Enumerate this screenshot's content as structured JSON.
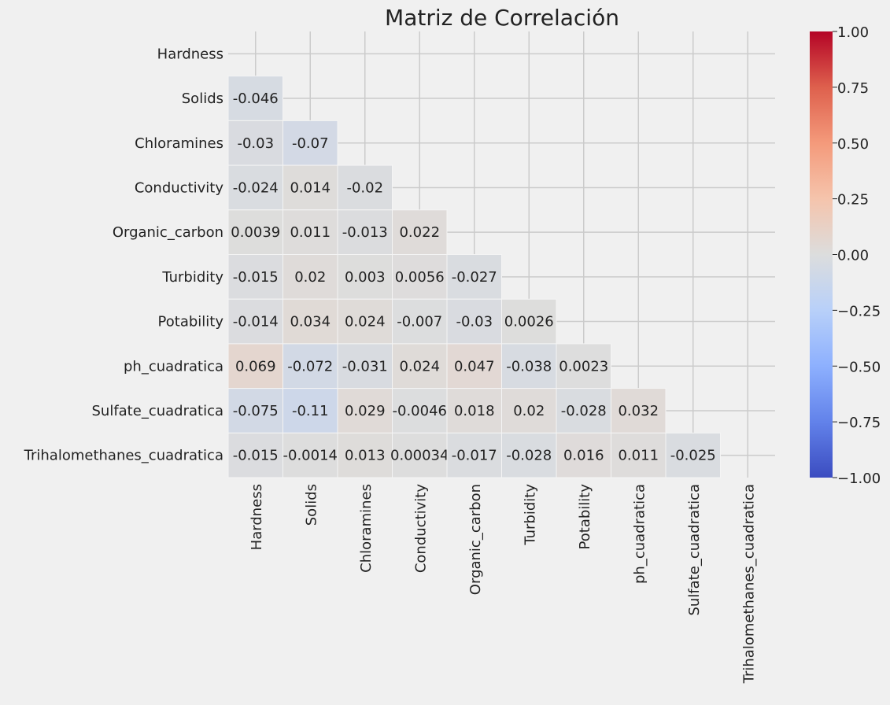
{
  "chart_data": {
    "type": "heatmap",
    "title": "Matriz de Correlación",
    "xlabel": "",
    "ylabel": "",
    "mask": "upper-triangle-including-diagonal",
    "colormap": "coolwarm",
    "vmin": -1.0,
    "vmax": 1.0,
    "labels": [
      "Hardness",
      "Solids",
      "Chloramines",
      "Conductivity",
      "Organic_carbon",
      "Turbidity",
      "Potability",
      "ph_cuadratica",
      "Sulfate_cuadratica",
      "Trihalomethanes_cuadratica"
    ],
    "values": [
      [
        null,
        null,
        null,
        null,
        null,
        null,
        null,
        null,
        null,
        null
      ],
      [
        -0.046,
        null,
        null,
        null,
        null,
        null,
        null,
        null,
        null,
        null
      ],
      [
        -0.03,
        -0.07,
        null,
        null,
        null,
        null,
        null,
        null,
        null,
        null
      ],
      [
        -0.024,
        0.014,
        -0.02,
        null,
        null,
        null,
        null,
        null,
        null,
        null
      ],
      [
        0.0039,
        0.011,
        -0.013,
        0.022,
        null,
        null,
        null,
        null,
        null,
        null
      ],
      [
        -0.015,
        0.02,
        0.003,
        0.0056,
        -0.027,
        null,
        null,
        null,
        null,
        null
      ],
      [
        -0.014,
        0.034,
        0.024,
        -0.007,
        -0.03,
        0.0026,
        null,
        null,
        null,
        null
      ],
      [
        0.069,
        -0.072,
        -0.031,
        0.024,
        0.047,
        -0.038,
        0.0023,
        null,
        null,
        null
      ],
      [
        -0.075,
        -0.11,
        0.029,
        -0.0046,
        0.018,
        0.02,
        -0.028,
        0.032,
        null,
        null
      ],
      [
        -0.015,
        -0.0014,
        0.013,
        0.00034,
        -0.017,
        -0.028,
        0.016,
        0.011,
        -0.025,
        null
      ]
    ],
    "colorbar_ticks": [
      "1.00",
      "0.75",
      "0.50",
      "0.25",
      "0.00",
      "−0.25",
      "−0.50",
      "−0.75",
      "−1.00"
    ],
    "colorbar_tick_values": [
      1.0,
      0.75,
      0.5,
      0.25,
      0.0,
      -0.25,
      -0.5,
      -0.75,
      -1.0
    ],
    "grid": true
  }
}
